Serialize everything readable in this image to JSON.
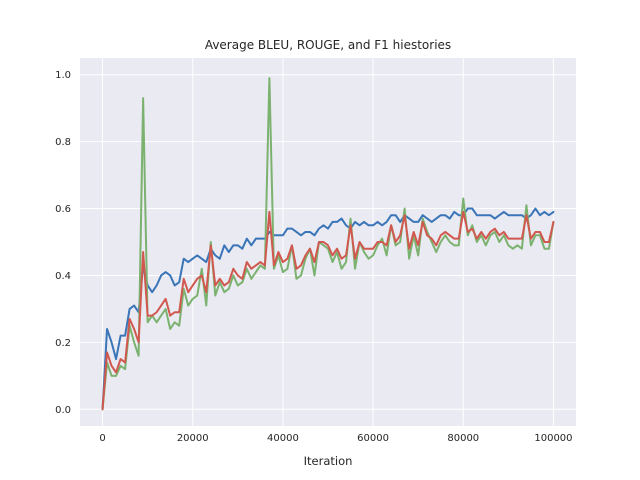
{
  "chart_data": {
    "type": "line",
    "title": "Average BLEU, ROUGE, and F1 hiestories",
    "xlabel": "Iteration",
    "ylabel": "",
    "xlim": [
      -5000,
      105000
    ],
    "ylim": [
      -0.05,
      1.05
    ],
    "xticks": [
      0,
      20000,
      40000,
      60000,
      80000,
      100000
    ],
    "xtick_labels": [
      "0",
      "20000",
      "40000",
      "60000",
      "80000",
      "100000"
    ],
    "yticks": [
      0.0,
      0.2,
      0.4,
      0.6,
      0.8,
      1.0
    ],
    "ytick_labels": [
      "0.0",
      "0.2",
      "0.4",
      "0.6",
      "0.8",
      "1.0"
    ],
    "grid": true,
    "legend": "none",
    "x": [
      0,
      1000,
      2000,
      3000,
      4000,
      5000,
      6000,
      7000,
      8000,
      9000,
      10000,
      11000,
      12000,
      13000,
      14000,
      15000,
      16000,
      17000,
      18000,
      19000,
      20000,
      21000,
      22000,
      23000,
      24000,
      25000,
      26000,
      27000,
      28000,
      29000,
      30000,
      31000,
      32000,
      33000,
      34000,
      35000,
      36000,
      37000,
      38000,
      39000,
      40000,
      41000,
      42000,
      43000,
      44000,
      45000,
      46000,
      47000,
      48000,
      49000,
      50000,
      51000,
      52000,
      53000,
      54000,
      55000,
      56000,
      57000,
      58000,
      59000,
      60000,
      61000,
      62000,
      63000,
      64000,
      65000,
      66000,
      67000,
      68000,
      69000,
      70000,
      71000,
      72000,
      73000,
      74000,
      75000,
      76000,
      77000,
      78000,
      79000,
      80000,
      81000,
      82000,
      83000,
      84000,
      85000,
      86000,
      87000,
      88000,
      89000,
      90000,
      91000,
      92000,
      93000,
      94000,
      95000,
      96000,
      97000,
      98000,
      99000,
      100000
    ],
    "series": [
      {
        "color": "#3a75b8",
        "values": [
          0.0,
          0.24,
          0.2,
          0.15,
          0.22,
          0.22,
          0.3,
          0.31,
          0.29,
          0.43,
          0.37,
          0.35,
          0.37,
          0.4,
          0.41,
          0.4,
          0.37,
          0.38,
          0.45,
          0.44,
          0.45,
          0.46,
          0.45,
          0.44,
          0.48,
          0.46,
          0.45,
          0.49,
          0.47,
          0.49,
          0.49,
          0.48,
          0.51,
          0.49,
          0.51,
          0.51,
          0.51,
          0.53,
          0.52,
          0.52,
          0.52,
          0.54,
          0.54,
          0.53,
          0.52,
          0.53,
          0.53,
          0.52,
          0.54,
          0.55,
          0.54,
          0.56,
          0.56,
          0.57,
          0.55,
          0.54,
          0.56,
          0.55,
          0.56,
          0.55,
          0.55,
          0.56,
          0.55,
          0.56,
          0.58,
          0.58,
          0.56,
          0.58,
          0.57,
          0.56,
          0.56,
          0.58,
          0.57,
          0.56,
          0.57,
          0.58,
          0.58,
          0.57,
          0.59,
          0.58,
          0.58,
          0.6,
          0.6,
          0.58,
          0.58,
          0.58,
          0.58,
          0.57,
          0.58,
          0.59,
          0.58,
          0.58,
          0.58,
          0.58,
          0.57,
          0.58,
          0.6,
          0.58,
          0.59,
          0.58,
          0.59
        ]
      },
      {
        "color": "#7bb26f",
        "values": [
          0.0,
          0.14,
          0.1,
          0.1,
          0.13,
          0.12,
          0.25,
          0.2,
          0.16,
          0.93,
          0.26,
          0.28,
          0.26,
          0.28,
          0.3,
          0.24,
          0.26,
          0.25,
          0.36,
          0.31,
          0.33,
          0.34,
          0.42,
          0.31,
          0.5,
          0.34,
          0.38,
          0.35,
          0.36,
          0.4,
          0.37,
          0.38,
          0.42,
          0.39,
          0.41,
          0.43,
          0.42,
          0.99,
          0.42,
          0.46,
          0.41,
          0.42,
          0.49,
          0.39,
          0.4,
          0.45,
          0.48,
          0.4,
          0.5,
          0.49,
          0.48,
          0.44,
          0.47,
          0.42,
          0.44,
          0.57,
          0.42,
          0.5,
          0.47,
          0.45,
          0.46,
          0.49,
          0.51,
          0.46,
          0.55,
          0.49,
          0.5,
          0.6,
          0.45,
          0.52,
          0.46,
          0.57,
          0.53,
          0.5,
          0.47,
          0.5,
          0.52,
          0.5,
          0.49,
          0.49,
          0.63,
          0.52,
          0.55,
          0.5,
          0.52,
          0.49,
          0.52,
          0.53,
          0.5,
          0.52,
          0.49,
          0.48,
          0.49,
          0.48,
          0.61,
          0.49,
          0.52,
          0.52,
          0.48,
          0.48,
          0.56
        ]
      },
      {
        "color": "#d1584f",
        "values": [
          0.0,
          0.17,
          0.13,
          0.11,
          0.15,
          0.14,
          0.27,
          0.24,
          0.2,
          0.47,
          0.28,
          0.28,
          0.29,
          0.31,
          0.33,
          0.28,
          0.29,
          0.29,
          0.39,
          0.35,
          0.37,
          0.39,
          0.4,
          0.35,
          0.49,
          0.37,
          0.39,
          0.37,
          0.38,
          0.42,
          0.4,
          0.39,
          0.44,
          0.42,
          0.43,
          0.44,
          0.43,
          0.59,
          0.43,
          0.47,
          0.44,
          0.45,
          0.49,
          0.42,
          0.43,
          0.46,
          0.48,
          0.44,
          0.5,
          0.5,
          0.49,
          0.46,
          0.48,
          0.45,
          0.46,
          0.55,
          0.45,
          0.5,
          0.48,
          0.48,
          0.48,
          0.5,
          0.5,
          0.49,
          0.55,
          0.5,
          0.52,
          0.58,
          0.48,
          0.53,
          0.49,
          0.56,
          0.52,
          0.51,
          0.49,
          0.52,
          0.53,
          0.52,
          0.51,
          0.51,
          0.59,
          0.53,
          0.54,
          0.51,
          0.53,
          0.51,
          0.53,
          0.54,
          0.52,
          0.53,
          0.51,
          0.51,
          0.51,
          0.51,
          0.58,
          0.51,
          0.53,
          0.53,
          0.5,
          0.5,
          0.56
        ]
      }
    ]
  }
}
